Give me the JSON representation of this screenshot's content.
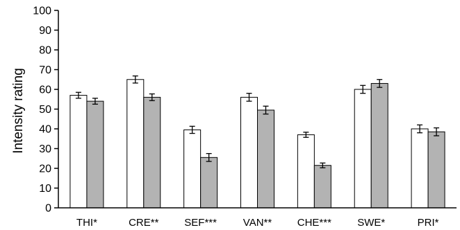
{
  "chart_data": {
    "type": "bar",
    "title": "",
    "xlabel": "",
    "ylabel": "Intensity rating",
    "ylim": [
      0,
      100
    ],
    "yticks": [
      0,
      10,
      20,
      30,
      40,
      50,
      60,
      70,
      80,
      90,
      100
    ],
    "grid": false,
    "legend": "none",
    "categories": [
      "THI*",
      "CRE**",
      "SEF***",
      "VAN**",
      "CHE***",
      "SWE*",
      "PRI*"
    ],
    "series": [
      {
        "color": "#ffffff",
        "values": [
          57,
          65,
          39.5,
          56,
          37,
          60,
          40
        ],
        "errors": [
          1.5,
          1.8,
          1.8,
          2.0,
          1.3,
          2.0,
          2.0
        ]
      },
      {
        "color": "#b3b3b3",
        "values": [
          54,
          56,
          25.5,
          49.5,
          21.5,
          63,
          38.5
        ],
        "errors": [
          1.5,
          1.7,
          2.0,
          2.0,
          1.2,
          2.0,
          2.0
        ]
      }
    ]
  }
}
